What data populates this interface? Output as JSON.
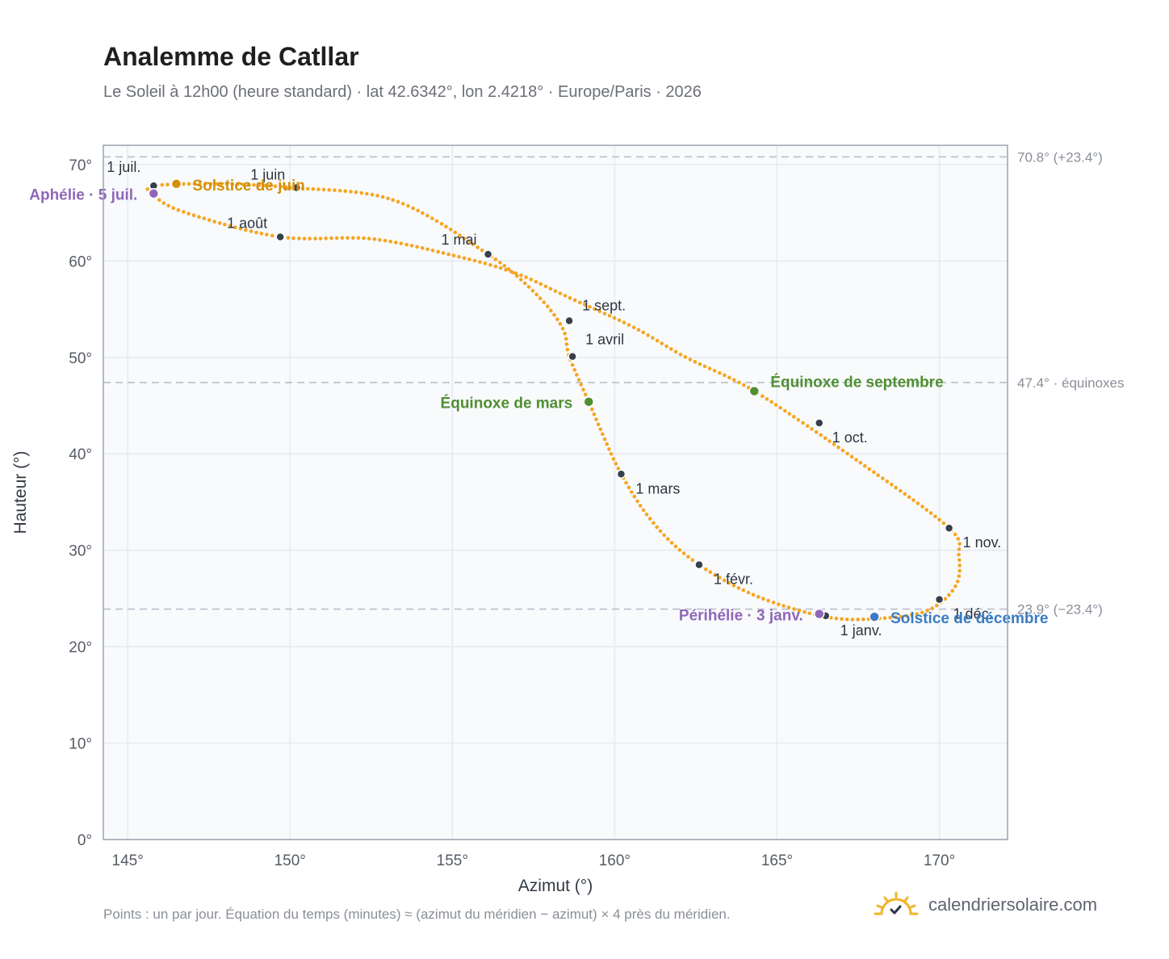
{
  "title": "Analemme de Catllar",
  "subtitle": "Le Soleil à 12h00 (heure standard) · lat 42.6342°, lon 2.4218° · Europe/Paris · 2026",
  "footnote": "Points : un par jour. Équation du temps (minutes) ≈ (azimut du méridien − azimut) × 4 près du méridien.",
  "brand": {
    "name": "calendriersolaire.com",
    "icon": "sun-logo-icon"
  },
  "colors": {
    "curve": "#f5a623",
    "marker": "#37404a",
    "solstice_june": "#d4900a",
    "solstice_dec": "#3a7cc2",
    "equinox": "#4f8f32",
    "perihelion": "#9067b8",
    "grid": "#e6eaef",
    "plot_bg": "#f8fafc",
    "frame": "#9aa3b0",
    "ref": "#b8c0cb"
  },
  "chart_data": {
    "type": "scatter",
    "xlabel": "Azimut (°)",
    "ylabel": "Hauteur (°)",
    "xlim": [
      144.25,
      172.1
    ],
    "ylim": [
      0,
      72
    ],
    "xticks": [
      145,
      150,
      155,
      160,
      165,
      170
    ],
    "yticks": [
      0,
      10,
      20,
      30,
      40,
      50,
      60,
      70
    ],
    "x_tick_labels": [
      "145°",
      "150°",
      "155°",
      "160°",
      "165°",
      "170°"
    ],
    "y_tick_labels": [
      "0°",
      "10°",
      "20°",
      "30°",
      "40°",
      "50°",
      "60°",
      "70°"
    ],
    "grid": true,
    "series": [
      {
        "x": [
          166.5,
          168.0,
          169.6,
          170.5,
          170.6,
          170.3,
          167.6,
          164.3,
          162.2,
          160.6,
          158.6,
          156.9,
          155.0,
          152.5,
          149.7,
          146.8,
          145.8,
          145.8,
          147.8,
          150.1,
          153.2,
          156.1,
          157.6,
          158.4,
          158.6,
          159.2,
          160.2,
          161.3,
          162.6,
          164.4,
          166.5
        ],
        "y": [
          23.1,
          22.9,
          23.7,
          26.3,
          29.5,
          32.3,
          39.0,
          46.5,
          50.0,
          53.1,
          56.2,
          58.8,
          60.6,
          62.3,
          62.5,
          65.0,
          66.8,
          67.8,
          68.0,
          67.6,
          66.3,
          60.7,
          56.5,
          53.0,
          50.1,
          45.4,
          37.9,
          32.4,
          28.5,
          25.2,
          23.1
        ]
      }
    ],
    "month_markers": [
      {
        "label": "1 janv.",
        "x": 166.5,
        "y": 23.2
      },
      {
        "label": "1 févr.",
        "x": 162.6,
        "y": 28.5
      },
      {
        "label": "1 mars",
        "x": 160.2,
        "y": 37.9
      },
      {
        "label": "1 avril",
        "x": 158.7,
        "y": 50.1
      },
      {
        "label": "1 mai",
        "x": 156.1,
        "y": 60.7
      },
      {
        "label": "1 juin",
        "x": 150.2,
        "y": 67.6
      },
      {
        "label": "1 juil.",
        "x": 145.8,
        "y": 67.8
      },
      {
        "label": "1 août",
        "x": 149.7,
        "y": 62.5
      },
      {
        "label": "1 sept.",
        "x": 158.6,
        "y": 53.8
      },
      {
        "label": "1 oct.",
        "x": 166.3,
        "y": 43.2
      },
      {
        "label": "1 nov.",
        "x": 170.3,
        "y": 32.3
      },
      {
        "label": "1 déc.",
        "x": 170.0,
        "y": 24.9
      }
    ],
    "events": [
      {
        "label": "Solstice de juin",
        "x": 146.5,
        "y": 68.0,
        "color": "#d4900a"
      },
      {
        "label": "Aphélie · 5 juil.",
        "x": 145.8,
        "y": 67.0,
        "color": "#9067b8"
      },
      {
        "label": "Équinoxe de mars",
        "x": 159.2,
        "y": 45.4,
        "color": "#4f8f32"
      },
      {
        "label": "Équinoxe de septembre",
        "x": 164.3,
        "y": 46.5,
        "color": "#4f8f32"
      },
      {
        "label": "Périhélie · 3 janv.",
        "x": 166.3,
        "y": 23.4,
        "color": "#9067b8"
      },
      {
        "label": "Solstice de décembre",
        "x": 168.0,
        "y": 23.1,
        "color": "#3a7cc2"
      }
    ],
    "reference_lines": [
      {
        "y": 70.8,
        "label": "70.8° (+23.4°)"
      },
      {
        "y": 47.4,
        "label": "47.4° · équinoxes"
      },
      {
        "y": 23.9,
        "label": "23.9° (−23.4°)"
      }
    ]
  }
}
